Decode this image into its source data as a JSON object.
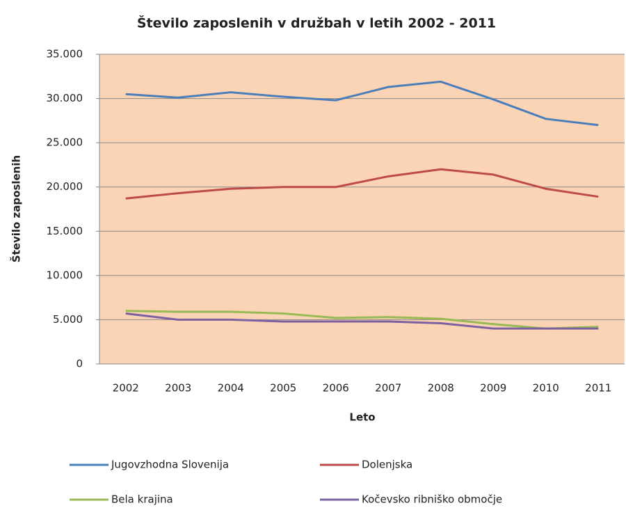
{
  "chart_data": {
    "type": "line",
    "title": "Število zaposlenih v družbah v letih 2002 - 2011",
    "x_label": "Leto",
    "y_label": "Število zaposlenih",
    "categories": [
      "2002",
      "2003",
      "2004",
      "2005",
      "2006",
      "2007",
      "2008",
      "2009",
      "2010",
      "2011"
    ],
    "series": [
      {
        "name": "Jugovzhodna Slovenija",
        "color": "#4a7ebb",
        "values": [
          30500,
          30100,
          30700,
          30200,
          29800,
          31300,
          31900,
          29900,
          27700,
          27000
        ]
      },
      {
        "name": "Dolenjska",
        "color": "#be4b48",
        "values": [
          18700,
          19300,
          19800,
          20000,
          20000,
          21200,
          22000,
          21400,
          19800,
          18900
        ]
      },
      {
        "name": "Bela krajina",
        "color": "#98b954",
        "values": [
          6000,
          5900,
          5900,
          5700,
          5200,
          5300,
          5100,
          4500,
          4000,
          4200
        ]
      },
      {
        "name": "Kočevsko ribniško območje",
        "color": "#7d60a0",
        "values": [
          5700,
          5000,
          5000,
          4800,
          4800,
          4800,
          4600,
          4000,
          4000,
          4000
        ]
      }
    ],
    "ylim": [
      0,
      35000
    ],
    "yticks": [
      0,
      {
        "value": 5000,
        "label": "5.000"
      },
      {
        "value": 10000,
        "label": "10.000"
      },
      {
        "value": 15000,
        "label": "15.000"
      },
      {
        "value": 20000,
        "label": "20.000"
      },
      {
        "value": 25000,
        "label": "25.000"
      },
      {
        "value": 30000,
        "label": "30.000"
      },
      {
        "value": 35000,
        "label": "35.000"
      }
    ],
    "grid": true,
    "plot_background": "#fad4b4"
  }
}
